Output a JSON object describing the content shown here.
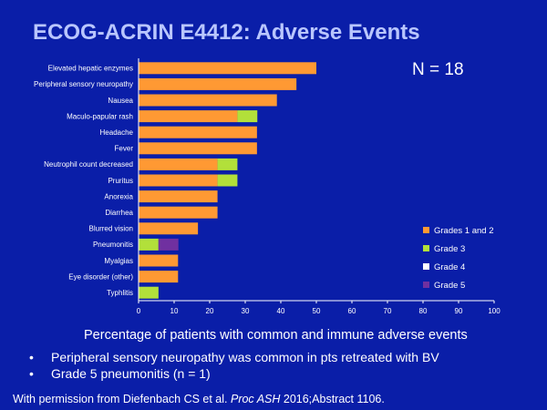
{
  "title": "ECOG-ACRIN E4412: Adverse Events",
  "n_label": "N = 18",
  "caption": "Percentage of patients with common and immune adverse events",
  "bullets": [
    "Peripheral sensory neuropathy was common in pts retreated with BV",
    "Grade 5 pneumonitis (n = 1)"
  ],
  "credit": {
    "before": "With permission from Diefenbach CS et al. ",
    "journal": "Proc ASH",
    "after": " 2016;Abstract 1106."
  },
  "chart_data": {
    "type": "bar",
    "orientation": "horizontal",
    "stacked": true,
    "categories": [
      "Elevated hepatic enzymes",
      "Peripheral sensory neuropathy",
      "Nausea",
      "Maculo-papular rash",
      "Headache",
      "Fever",
      "Neutrophil count decreased",
      "Pruritus",
      "Anorexia",
      "Diarrhea",
      "Blurred vision",
      "Pneumonitis",
      "Myalgias",
      "Eye disorder (other)",
      "Typhlitis"
    ],
    "series": [
      {
        "name": "Grades 1 and 2",
        "color": "#ff9933",
        "values": [
          50,
          44.4,
          38.9,
          27.8,
          33.3,
          33.3,
          22.2,
          22.2,
          22.2,
          22.2,
          16.7,
          0,
          11.1,
          11.1,
          0
        ]
      },
      {
        "name": "Grade 3",
        "color": "#b2e03a",
        "values": [
          0,
          0,
          0,
          5.6,
          0,
          0,
          5.6,
          5.6,
          0,
          0,
          0,
          5.6,
          0,
          0,
          5.6
        ]
      },
      {
        "name": "Grade 4",
        "color": "#ffffff",
        "values": [
          0,
          0,
          0,
          0,
          0,
          0,
          0,
          0,
          0,
          0,
          0,
          0,
          0,
          0,
          0
        ]
      },
      {
        "name": "Grade 5",
        "color": "#7030a0",
        "values": [
          0,
          0,
          0,
          0,
          0,
          0,
          0,
          0,
          0,
          0,
          0,
          5.6,
          0,
          0,
          0
        ]
      }
    ],
    "xlim": [
      0,
      100
    ],
    "xticks": [
      0,
      10,
      20,
      30,
      40,
      50,
      60,
      70,
      80,
      90,
      100
    ],
    "grid": false,
    "legend_position": "right"
  }
}
